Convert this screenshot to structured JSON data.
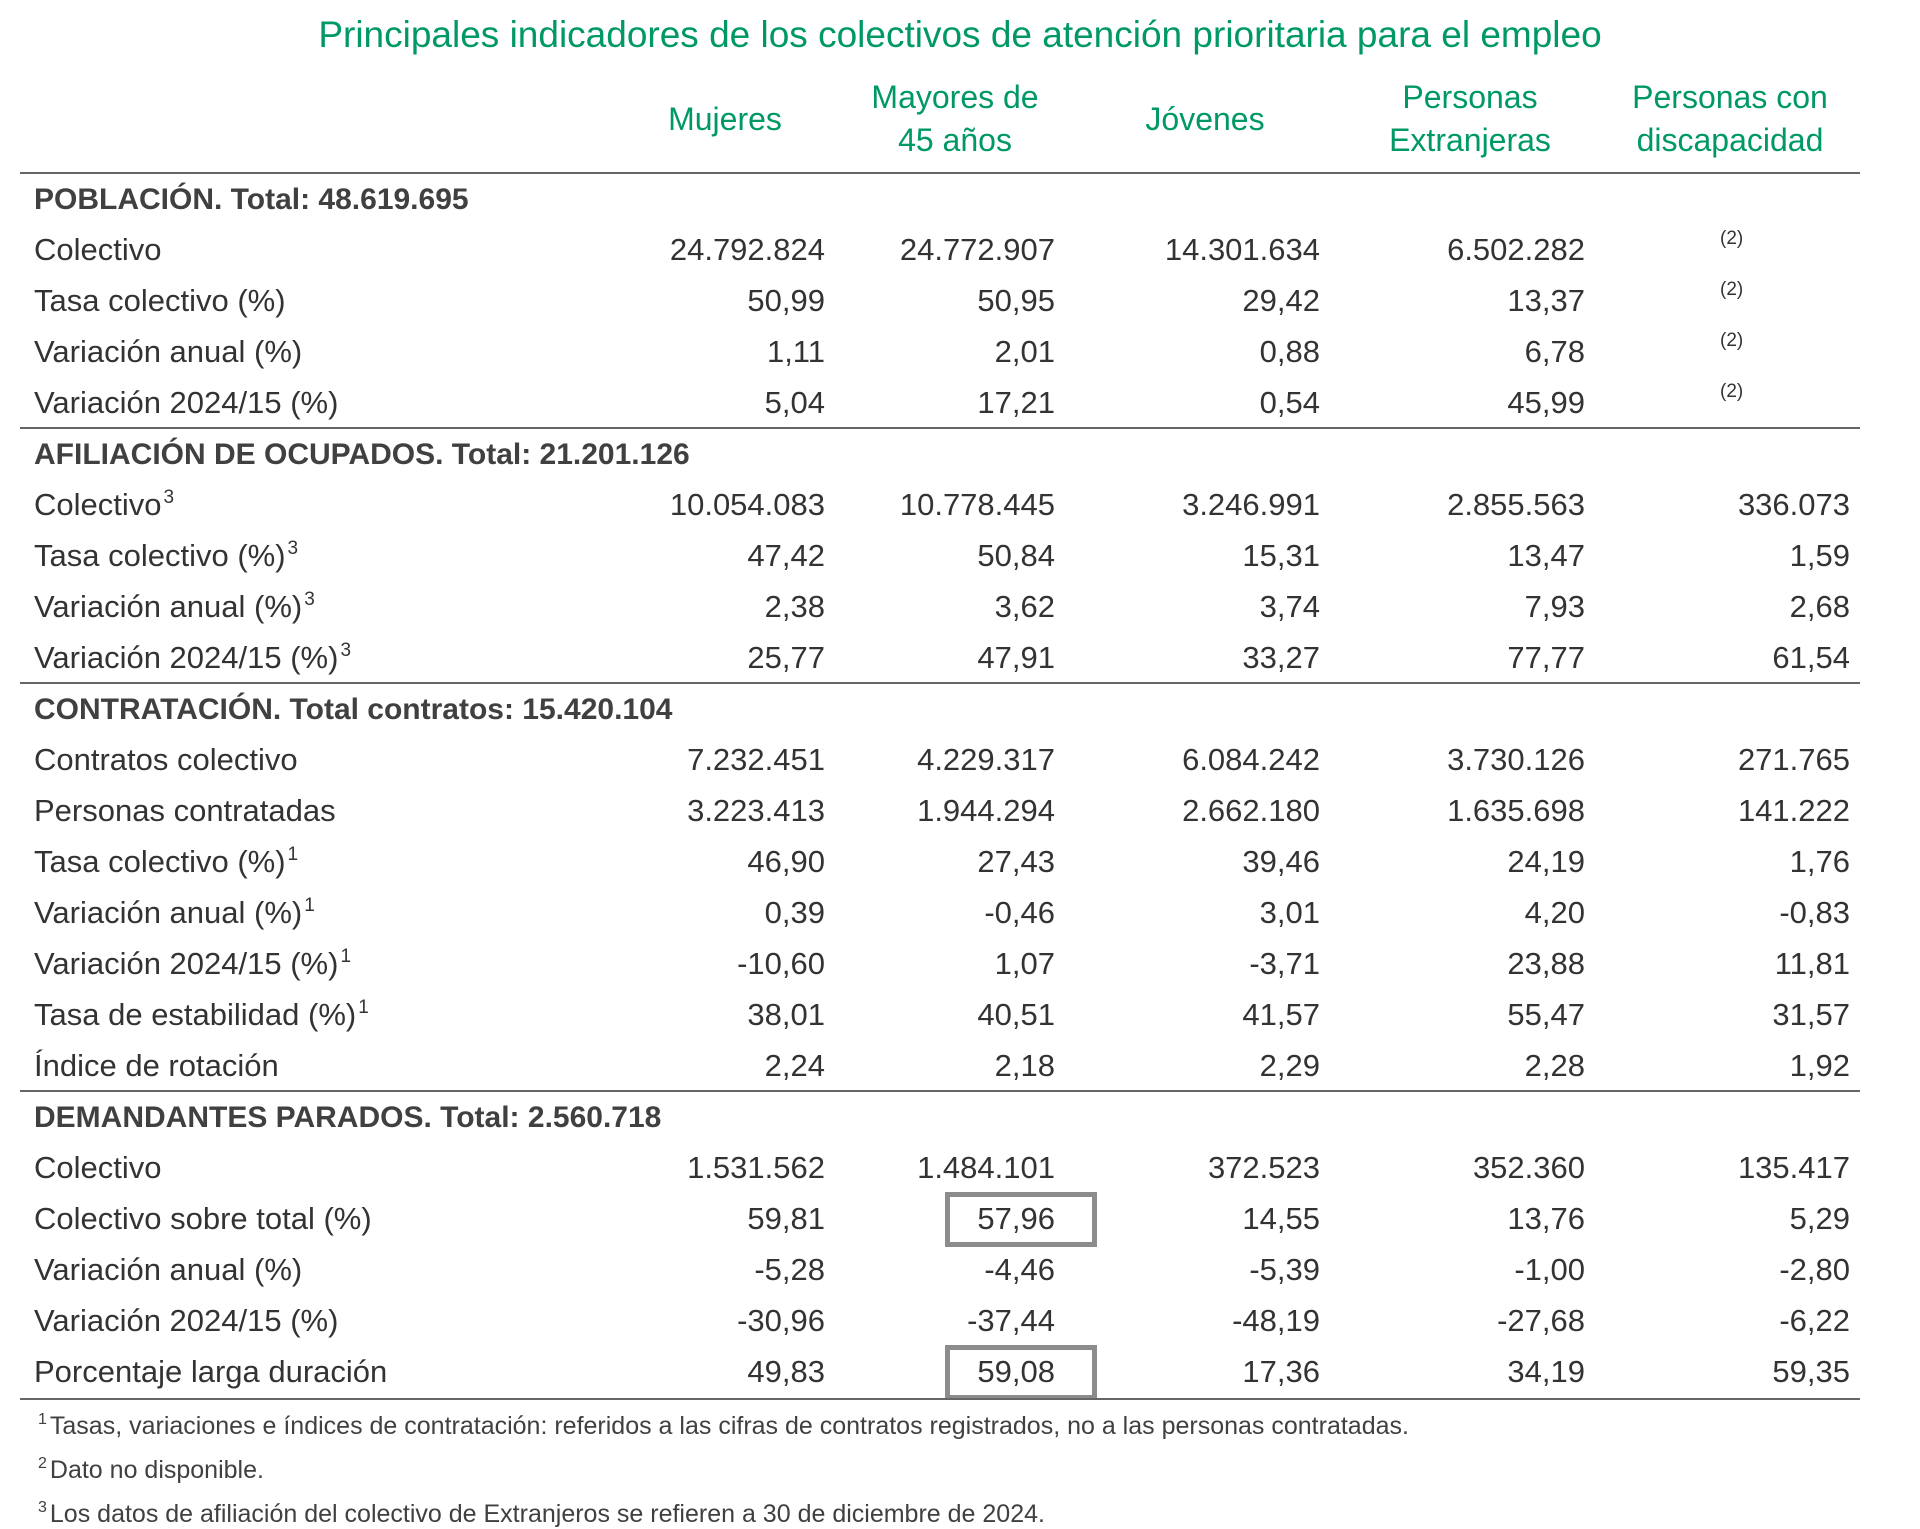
{
  "title": "Principales indicadores de los colectivos de atención prioritaria para el empleo",
  "columns": [
    {
      "line1": "Mujeres",
      "line2": ""
    },
    {
      "line1": "Mayores de",
      "line2": "45 años"
    },
    {
      "line1": "Jóvenes",
      "line2": ""
    },
    {
      "line1": "Personas",
      "line2": "Extranjeras"
    },
    {
      "line1": "Personas con",
      "line2": "discapacidad"
    }
  ],
  "sections": [
    {
      "heading": "POBLACIÓN. Total: 48.619.695",
      "rows": [
        {
          "label": "Colectivo",
          "sup": "",
          "values": [
            "24.792.824",
            "24.772.907",
            "14.301.634",
            "6.502.282",
            "(2)"
          ]
        },
        {
          "label": "Tasa colectivo (%)",
          "sup": "",
          "values": [
            "50,99",
            "50,95",
            "29,42",
            "13,37",
            "(2)"
          ]
        },
        {
          "label": "Variación anual (%)",
          "sup": "",
          "values": [
            "1,11",
            "2,01",
            "0,88",
            "6,78",
            "(2)"
          ]
        },
        {
          "label": "Variación 2024/15 (%)",
          "sup": "",
          "values": [
            "5,04",
            "17,21",
            "0,54",
            "45,99",
            "(2)"
          ]
        }
      ]
    },
    {
      "heading": "AFILIACIÓN DE OCUPADOS. Total: 21.201.126",
      "rows": [
        {
          "label": "Colectivo",
          "sup": "3",
          "values": [
            "10.054.083",
            "10.778.445",
            "3.246.991",
            "2.855.563",
            "336.073"
          ]
        },
        {
          "label": "Tasa colectivo (%)",
          "sup": "3",
          "values": [
            "47,42",
            "50,84",
            "15,31",
            "13,47",
            "1,59"
          ]
        },
        {
          "label": "Variación anual (%)",
          "sup": "3",
          "values": [
            "2,38",
            "3,62",
            "3,74",
            "7,93",
            "2,68"
          ]
        },
        {
          "label": "Variación 2024/15 (%)",
          "sup": "3",
          "values": [
            "25,77",
            "47,91",
            "33,27",
            "77,77",
            "61,54"
          ]
        }
      ]
    },
    {
      "heading": "CONTRATACIÓN. Total contratos: 15.420.104",
      "rows": [
        {
          "label": "Contratos colectivo",
          "sup": "",
          "values": [
            "7.232.451",
            "4.229.317",
            "6.084.242",
            "3.730.126",
            "271.765"
          ]
        },
        {
          "label": "Personas contratadas",
          "sup": "",
          "values": [
            "3.223.413",
            "1.944.294",
            "2.662.180",
            "1.635.698",
            "141.222"
          ]
        },
        {
          "label": "Tasa colectivo (%)",
          "sup": "1",
          "values": [
            "46,90",
            "27,43",
            "39,46",
            "24,19",
            "1,76"
          ]
        },
        {
          "label": "Variación anual (%)",
          "sup": "1",
          "values": [
            "0,39",
            "-0,46",
            "3,01",
            "4,20",
            "-0,83"
          ]
        },
        {
          "label": "Variación 2024/15 (%)",
          "sup": "1",
          "values": [
            "-10,60",
            "1,07",
            "-3,71",
            "23,88",
            "11,81"
          ]
        },
        {
          "label": "Tasa de estabilidad (%)",
          "sup": "1",
          "values": [
            "38,01",
            "40,51",
            "41,57",
            "55,47",
            "31,57"
          ]
        },
        {
          "label": "Índice de rotación",
          "sup": "",
          "values": [
            "2,24",
            "2,18",
            "2,29",
            "2,28",
            "1,92"
          ]
        }
      ]
    },
    {
      "heading": "DEMANDANTES PARADOS. Total: 2.560.718",
      "rows": [
        {
          "label": "Colectivo",
          "sup": "",
          "values": [
            "1.531.562",
            "1.484.101",
            "372.523",
            "352.360",
            "135.417"
          ]
        },
        {
          "label": "Colectivo sobre total (%)",
          "sup": "",
          "values": [
            "59,81",
            "57,96",
            "14,55",
            "13,76",
            "5,29"
          ]
        },
        {
          "label": "Variación anual (%)",
          "sup": "",
          "values": [
            "-5,28",
            "-4,46",
            "-5,39",
            "-1,00",
            "-2,80"
          ]
        },
        {
          "label": "Variación 2024/15 (%)",
          "sup": "",
          "values": [
            "-30,96",
            "-37,44",
            "-48,19",
            "-27,68",
            "-6,22"
          ]
        },
        {
          "label": "Porcentaje larga duración",
          "sup": "",
          "values": [
            "49,83",
            "59,08",
            "17,36",
            "34,19",
            "59,35"
          ]
        }
      ]
    }
  ],
  "footnotes": [
    {
      "mark": "1",
      "text": "Tasas, variaciones e índices de contratación: referidos a las cifras de contratos registrados, no a las personas contratadas."
    },
    {
      "mark": "2",
      "text": "Dato no disponible."
    },
    {
      "mark": "3",
      "text": "Los datos de afiliación del colectivo de Extranjeros se refieren a 30 de diciembre de 2024."
    }
  ],
  "colors": {
    "title": "#009966",
    "header": "#009966",
    "rule": "#666666",
    "highlight_box": "#8c8c8c"
  }
}
